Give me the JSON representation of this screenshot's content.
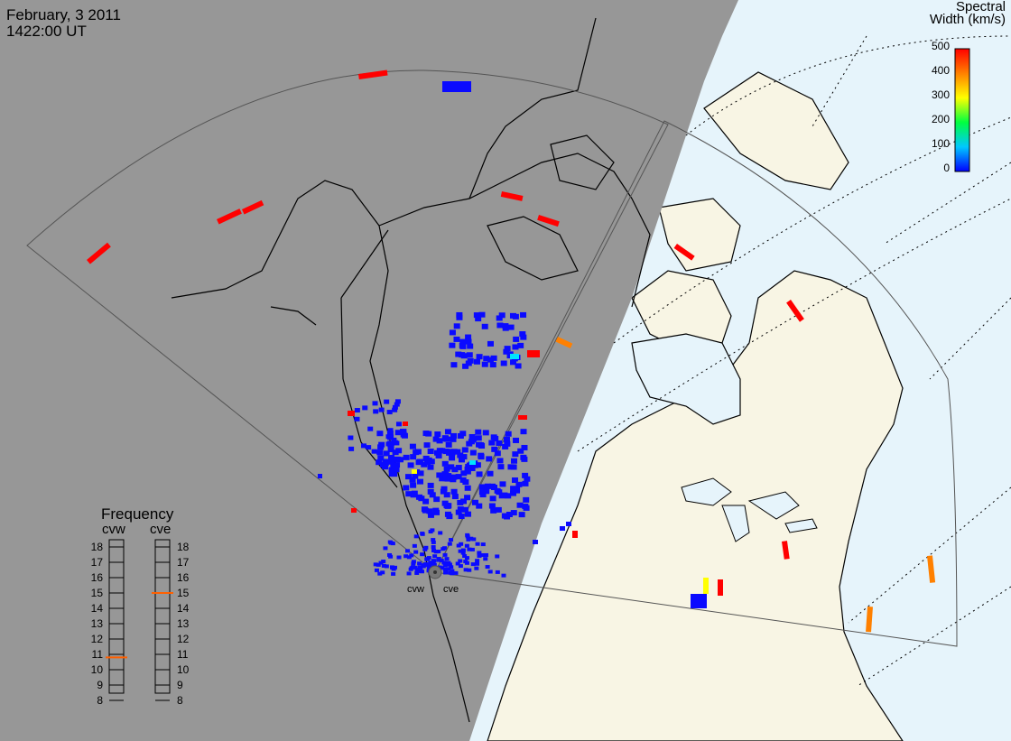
{
  "header": {
    "date": "February, 3 2011",
    "time": "1422:00 UT"
  },
  "colorbar": {
    "title_line1": "Spectral",
    "title_line2": "Width (km/s)",
    "ticks": [
      "500",
      "400",
      "300",
      "200",
      "100",
      "0"
    ],
    "min": 0,
    "max": 500,
    "colors": [
      "#0000ff",
      "#00c8ff",
      "#00ff40",
      "#ffff00",
      "#ff8000",
      "#ff0000"
    ]
  },
  "frequency": {
    "title": "Frequency",
    "left_radar": "cvw",
    "right_radar": "cve",
    "levels": [
      "18",
      "17",
      "16",
      "15",
      "14",
      "13",
      "12",
      "11",
      "10",
      "9",
      "8"
    ],
    "cvw_mhz": 10.8,
    "cve_mhz": 15.0,
    "marker_color": "#ff6000"
  },
  "radars": {
    "west": "cvw",
    "east": "cve"
  },
  "map_colors": {
    "night": "#979797",
    "day_land": "#f8f5e4",
    "ocean": "#e6f4fb",
    "coast": "#000000",
    "fov": "#555555",
    "grid": "#000000"
  }
}
